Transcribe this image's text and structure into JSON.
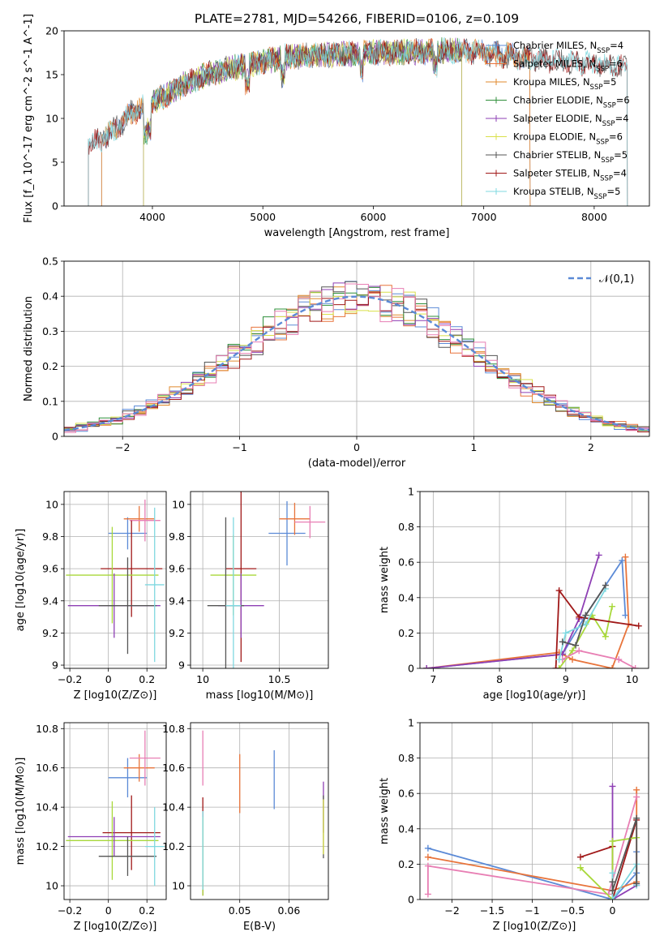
{
  "figure": {
    "title": "PLATE=2781, MJD=54266, FIBERID=0106, z=0.109"
  },
  "colors": {
    "Chabrier MILES": "#5b8ad6",
    "Salpeter MILES": "#e8743b",
    "Kroupa MILES": "#e08a2e",
    "Chabrier ELODIE": "#2f8f3a",
    "Salpeter ELODIE": "#8e3fb4",
    "Kroupa ELODIE": "#d9e04a",
    "Chabrier STELIB": "#555555",
    "Salpeter STELIB": "#a01818",
    "Kroupa STELIB": "#7fd8e0",
    "pink": "#e87fb4",
    "lime": "#a8d83a",
    "normal": "#5b8ad6"
  },
  "chart_data": [
    {
      "id": "spectrum",
      "type": "line",
      "xlabel": "wavelength [Angstrom, rest frame]",
      "ylabel": "Flux [f_λ 10^-17 erg cm^-2 s^-1 A^-1]",
      "xlim": [
        3200,
        8500
      ],
      "ylim": [
        0,
        20
      ],
      "xticks": [
        4000,
        5000,
        6000,
        7000,
        8000
      ],
      "yticks": [
        0,
        5,
        10,
        15,
        20
      ],
      "grid": false,
      "legend_position": "right",
      "legend": [
        "Chabrier MILES, N_SSP=4",
        "Salpeter MILES, N_SSP=6",
        "Kroupa MILES, N_SSP=5",
        "Chabrier ELODIE, N_SSP=6",
        "Salpeter ELODIE, N_SSP=4",
        "Kroupa ELODIE, N_SSP=6",
        "Chabrier STELIB, N_SSP=5",
        "Salpeter STELIB, N_SSP=4",
        "Kroupa STELIB, N_SSP=5"
      ],
      "envelope": {
        "x": [
          3420,
          3600,
          3800,
          3950,
          4100,
          4300,
          4500,
          4800,
          5000,
          5200,
          5500,
          5800,
          6000,
          6300,
          6600,
          7000,
          7300,
          7600,
          8000,
          8300
        ],
        "y": [
          7.0,
          8.0,
          10.5,
          11.5,
          12.5,
          14.0,
          15.0,
          16.0,
          16.5,
          17.0,
          17.2,
          17.4,
          17.5,
          17.6,
          17.7,
          17.6,
          17.0,
          16.6,
          16.2,
          15.8
        ]
      },
      "series_ranges": [
        {
          "name": "Chabrier MILES",
          "xrange": [
            3540,
            7420
          ]
        },
        {
          "name": "Salpeter MILES",
          "xrange": [
            3540,
            7420
          ]
        },
        {
          "name": "Kroupa MILES",
          "xrange": [
            3540,
            7420
          ]
        },
        {
          "name": "Chabrier ELODIE",
          "xrange": [
            3920,
            6800
          ]
        },
        {
          "name": "Salpeter ELODIE",
          "xrange": [
            3920,
            6800
          ]
        },
        {
          "name": "Kroupa ELODIE",
          "xrange": [
            3920,
            6800
          ]
        },
        {
          "name": "Chabrier STELIB",
          "xrange": [
            3420,
            8300
          ]
        },
        {
          "name": "Salpeter STELIB",
          "xrange": [
            3420,
            8300
          ]
        },
        {
          "name": "Kroupa STELIB",
          "xrange": [
            3420,
            8300
          ]
        }
      ]
    },
    {
      "id": "residuals",
      "type": "histogram",
      "xlabel": "(data-model)/error",
      "ylabel": "Normed distribution",
      "xlim": [
        -2.5,
        2.5
      ],
      "ylim": [
        0,
        0.5
      ],
      "xticks": [
        -2,
        -1,
        0,
        1,
        2
      ],
      "yticks": [
        0.0,
        0.1,
        0.2,
        0.3,
        0.4,
        0.5
      ],
      "grid": true,
      "legend": [
        "𝒩(0,1)"
      ],
      "legend_position": "top-right",
      "bin_width": 0.1,
      "series_count": 9
    },
    {
      "id": "z_age",
      "type": "errorbar",
      "xlabel": "Z [log10(Z/Z⊙)]",
      "ylabel": "age [log10(age/yr)]",
      "xlim": [
        -0.23,
        0.3
      ],
      "ylim": [
        8.98,
        10.08
      ],
      "xticks": [
        -0.2,
        0.0,
        0.2
      ],
      "yticks": [
        9.0,
        9.2,
        9.4,
        9.6,
        9.8,
        10.0
      ],
      "grid": true,
      "points": [
        {
          "color": "Chabrier MILES",
          "x": 0.1,
          "y": 9.82,
          "xerr": 0.1,
          "yerr": 0.1
        },
        {
          "color": "Salpeter MILES",
          "x": 0.16,
          "y": 9.91,
          "xerr": 0.08,
          "yerr": 0.08
        },
        {
          "color": "pink",
          "x": 0.19,
          "y": 9.9,
          "xerr": 0.08,
          "yerr": 0.13
        },
        {
          "color": "Salpeter STELIB",
          "x": 0.12,
          "y": 9.6,
          "xerr": 0.16,
          "yerr": 0.3
        },
        {
          "color": "lime",
          "x": 0.02,
          "y": 9.56,
          "xerr": 0.24,
          "yerr": 0.3
        },
        {
          "color": "Salpeter ELODIE",
          "x": 0.03,
          "y": 9.37,
          "xerr": 0.24,
          "yerr": 0.2
        },
        {
          "color": "Chabrier STELIB",
          "x": 0.1,
          "y": 9.37,
          "xerr": 0.15,
          "yerr": 0.3
        },
        {
          "color": "Kroupa STELIB",
          "x": 0.24,
          "y": 9.5,
          "xerr": 0.05,
          "yerr": 0.48
        }
      ]
    },
    {
      "id": "mass_age",
      "type": "errorbar",
      "xlabel": "mass [log10(M/M⊙)]",
      "ylabel": "",
      "xlim": [
        9.92,
        10.82
      ],
      "ylim": [
        8.98,
        10.08
      ],
      "xticks": [
        10.0,
        10.5
      ],
      "yticks": [
        9.0,
        9.2,
        9.4,
        9.6,
        9.8,
        10.0
      ],
      "grid": true,
      "points": [
        {
          "color": "Chabrier MILES",
          "x": 10.55,
          "y": 9.82,
          "xerr": 0.12,
          "yerr": 0.2
        },
        {
          "color": "Salpeter MILES",
          "x": 10.6,
          "y": 9.91,
          "xerr": 0.1,
          "yerr": 0.1
        },
        {
          "color": "pink",
          "x": 10.7,
          "y": 9.89,
          "xerr": 0.1,
          "yerr": 0.1
        },
        {
          "color": "Salpeter STELIB",
          "x": 10.25,
          "y": 9.6,
          "xerr": 0.1,
          "yerr": 0.58
        },
        {
          "color": "lime",
          "x": 10.2,
          "y": 9.56,
          "xerr": 0.15,
          "yerr": 0.25
        },
        {
          "color": "Salpeter ELODIE",
          "x": 10.25,
          "y": 9.37,
          "xerr": 0.15,
          "yerr": 0.2
        },
        {
          "color": "Chabrier STELIB",
          "x": 10.15,
          "y": 9.37,
          "xerr": 0.12,
          "yerr": 0.55
        },
        {
          "color": "Kroupa STELIB",
          "x": 10.2,
          "y": 9.37,
          "xerr": 0.05,
          "yerr": 0.55
        }
      ]
    },
    {
      "id": "age_weight",
      "type": "line",
      "xlabel": "age [log10(age/yr)]",
      "ylabel": "mass weight",
      "xlim": [
        6.8,
        10.25
      ],
      "ylim": [
        0.0,
        1.0
      ],
      "xticks": [
        7,
        8,
        9,
        10
      ],
      "yticks": [
        0.0,
        0.2,
        0.4,
        0.6,
        0.8,
        1.0
      ],
      "grid": true,
      "series": [
        {
          "color": "Chabrier MILES",
          "x": [
            6.9,
            8.95,
            9.3,
            9.85,
            9.9
          ],
          "y": [
            0.0,
            0.08,
            0.3,
            0.61,
            0.3
          ]
        },
        {
          "color": "Salpeter MILES",
          "x": [
            6.9,
            8.9,
            9.1,
            9.7,
            9.95,
            9.9
          ],
          "y": [
            0.0,
            0.09,
            0.05,
            0.0,
            0.25,
            0.63
          ]
        },
        {
          "color": "Salpeter ELODIE",
          "x": [
            6.9,
            8.95,
            9.2,
            9.5
          ],
          "y": [
            0.0,
            0.08,
            0.28,
            0.64
          ]
        },
        {
          "color": "lime",
          "x": [
            8.9,
            9.1,
            9.4,
            9.6,
            9.7
          ],
          "y": [
            0.0,
            0.1,
            0.3,
            0.18,
            0.35
          ]
        },
        {
          "color": "Salpeter STELIB",
          "x": [
            8.85,
            8.9,
            9.2,
            10.1
          ],
          "y": [
            0.0,
            0.44,
            0.29,
            0.24
          ]
        },
        {
          "color": "pink",
          "x": [
            8.95,
            9.2,
            9.8,
            10.05
          ],
          "y": [
            0.05,
            0.1,
            0.05,
            0.0
          ]
        },
        {
          "color": "Kroupa STELIB",
          "x": [
            8.9,
            9.0,
            9.3,
            9.6
          ],
          "y": [
            0.05,
            0.2,
            0.25,
            0.45
          ]
        },
        {
          "color": "Chabrier STELIB",
          "x": [
            8.95,
            9.15,
            9.3,
            9.6
          ],
          "y": [
            0.15,
            0.13,
            0.3,
            0.47
          ]
        }
      ]
    },
    {
      "id": "z_mass",
      "type": "errorbar",
      "xlabel": "Z [log10(Z/Z⊙)]",
      "ylabel": "mass [log10(M/M⊙)]",
      "xlim": [
        -0.23,
        0.3
      ],
      "ylim": [
        9.93,
        10.83
      ],
      "xticks": [
        -0.2,
        0.0,
        0.2
      ],
      "yticks": [
        10.0,
        10.2,
        10.4,
        10.6,
        10.8
      ],
      "grid": true,
      "points": [
        {
          "color": "Chabrier MILES",
          "x": 0.1,
          "y": 10.55,
          "xerr": 0.1,
          "yerr": 0.1
        },
        {
          "color": "Salpeter MILES",
          "x": 0.16,
          "y": 10.6,
          "xerr": 0.08,
          "yerr": 0.07
        },
        {
          "color": "pink",
          "x": 0.19,
          "y": 10.65,
          "xerr": 0.08,
          "yerr": 0.14
        },
        {
          "color": "Salpeter STELIB",
          "x": 0.12,
          "y": 10.27,
          "xerr": 0.15,
          "yerr": 0.19
        },
        {
          "color": "lime",
          "x": 0.02,
          "y": 10.23,
          "xerr": 0.24,
          "yerr": 0.2
        },
        {
          "color": "Salpeter ELODIE",
          "x": 0.03,
          "y": 10.25,
          "xerr": 0.24,
          "yerr": 0.1
        },
        {
          "color": "Chabrier STELIB",
          "x": 0.1,
          "y": 10.15,
          "xerr": 0.15,
          "yerr": 0.1
        },
        {
          "color": "Kroupa STELIB",
          "x": 0.24,
          "y": 10.2,
          "xerr": 0.05,
          "yerr": 0.2
        }
      ]
    },
    {
      "id": "ebv_mass",
      "type": "errorbar",
      "xlabel": "E(B-V)",
      "ylabel": "",
      "xlim": [
        0.04,
        0.068
      ],
      "ylim": [
        9.93,
        10.83
      ],
      "xticks": [
        0.05,
        0.06
      ],
      "yticks": [
        10.0,
        10.2,
        10.4,
        10.6,
        10.8
      ],
      "grid": true,
      "points": [
        {
          "color": "Chabrier MILES",
          "x": 0.057,
          "y": 10.54,
          "xerr": 0,
          "yerr": 0.15
        },
        {
          "color": "Salpeter MILES",
          "x": 0.05,
          "y": 10.52,
          "xerr": 0,
          "yerr": 0.15
        },
        {
          "color": "pink",
          "x": 0.0425,
          "y": 10.65,
          "xerr": 0,
          "yerr": 0.14
        },
        {
          "color": "Salpeter STELIB",
          "x": 0.0425,
          "y": 10.2,
          "xerr": 0,
          "yerr": 0.25
        },
        {
          "color": "lime",
          "x": 0.0425,
          "y": 10.15,
          "xerr": 0,
          "yerr": 0.2
        },
        {
          "color": "Salpeter ELODIE",
          "x": 0.067,
          "y": 10.4,
          "xerr": 0,
          "yerr": 0.13
        },
        {
          "color": "Chabrier STELIB",
          "x": 0.067,
          "y": 10.3,
          "xerr": 0,
          "yerr": 0.16
        },
        {
          "color": "Kroupa STELIB",
          "x": 0.0425,
          "y": 10.18,
          "xerr": 0,
          "yerr": 0.2
        },
        {
          "color": "Kroupa ELODIE",
          "x": 0.067,
          "y": 10.3,
          "xerr": 0,
          "yerr": 0.14
        }
      ]
    },
    {
      "id": "z_weight",
      "type": "line",
      "xlabel": "Z [log10(Z/Z⊙)]",
      "ylabel": "mass weight",
      "xlim": [
        -2.4,
        0.45
      ],
      "ylim": [
        0.0,
        1.0
      ],
      "xticks": [
        -2.0,
        -1.5,
        -1.0,
        -0.5,
        0.0
      ],
      "yticks": [
        0.0,
        0.2,
        0.4,
        0.6,
        0.8,
        1.0
      ],
      "grid": true,
      "series": [
        {
          "color": "Chabrier MILES",
          "x": [
            -2.3,
            0.0,
            0.3,
            0.3
          ],
          "y": [
            0.29,
            0.0,
            0.15,
            0.27
          ]
        },
        {
          "color": "Salpeter MILES",
          "x": [
            -2.3,
            0.0,
            0.3,
            0.3
          ],
          "y": [
            0.24,
            0.05,
            0.1,
            0.62
          ]
        },
        {
          "color": "pink",
          "x": [
            -2.3,
            -2.3,
            -0.05,
            0.3
          ],
          "y": [
            0.03,
            0.19,
            0.03,
            0.58
          ]
        },
        {
          "color": "Salpeter ELODIE",
          "x": [
            0.0,
            0.0,
            0.0,
            0.3
          ],
          "y": [
            0.64,
            0.0,
            0.0,
            0.08
          ]
        },
        {
          "color": "Salpeter STELIB",
          "x": [
            -0.4,
            0.0,
            0.0,
            0.3
          ],
          "y": [
            0.24,
            0.3,
            0.0,
            0.45
          ]
        },
        {
          "color": "lime",
          "x": [
            -0.4,
            0.0,
            0.0,
            0.3
          ],
          "y": [
            0.18,
            0.0,
            0.33,
            0.35
          ]
        },
        {
          "color": "Kroupa STELIB",
          "x": [
            0.0,
            0.0,
            0.3,
            0.3
          ],
          "y": [
            0.15,
            0.0,
            0.2,
            0.08
          ]
        },
        {
          "color": "Chabrier STELIB",
          "x": [
            0.0,
            0.0,
            0.3,
            0.3
          ],
          "y": [
            0.1,
            0.05,
            0.46,
            0.09
          ]
        }
      ]
    }
  ]
}
